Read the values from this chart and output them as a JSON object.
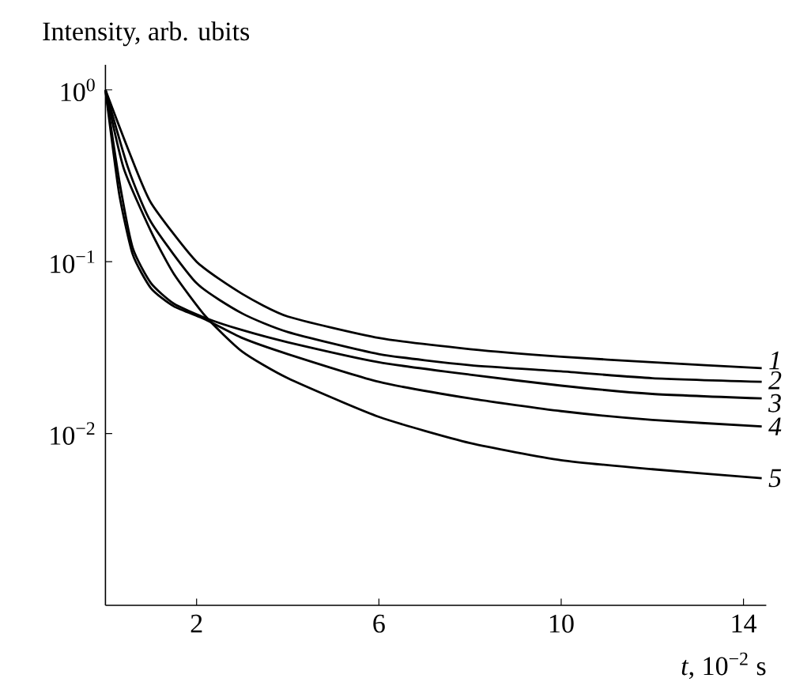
{
  "chart_data": {
    "type": "line",
    "ylabel": "Intensity, arb. ubits",
    "xlabel": "*t*, 10$^{−2}$ s",
    "log": "y",
    "xlim": [
      0,
      14.5
    ],
    "ylim": [
      0.001,
      1.4
    ],
    "xticks": [
      2,
      6,
      10,
      14
    ],
    "yticks": [
      {
        "value": 1,
        "label": "10$^{0}$"
      },
      {
        "value": 0.1,
        "label": "10$^{−1}$"
      },
      {
        "value": 0.01,
        "label": "10$^{−2}$"
      }
    ],
    "grid": false,
    "legend": false,
    "marker": "none",
    "line_style": "solid",
    "series": [
      {
        "name": "1",
        "color": "#000000",
        "x": [
          0,
          0.5,
          1,
          2,
          3,
          4,
          6,
          8,
          10,
          12,
          14.4
        ],
        "values": [
          1,
          0.45,
          0.22,
          0.1,
          0.065,
          0.048,
          0.036,
          0.031,
          0.028,
          0.026,
          0.024
        ]
      },
      {
        "name": "2",
        "color": "#000000",
        "x": [
          0,
          0.5,
          1,
          2,
          3,
          4,
          6,
          8,
          10,
          12,
          14.4
        ],
        "values": [
          1,
          0.35,
          0.17,
          0.075,
          0.05,
          0.039,
          0.029,
          0.025,
          0.023,
          0.021,
          0.02
        ]
      },
      {
        "name": "3",
        "color": "#000000",
        "x": [
          0,
          0.3,
          0.6,
          1,
          1.5,
          2.2,
          3,
          4,
          6,
          8,
          10,
          12,
          14.4
        ],
        "values": [
          1,
          0.3,
          0.12,
          0.075,
          0.057,
          0.047,
          0.04,
          0.034,
          0.026,
          0.022,
          0.019,
          0.017,
          0.016
        ]
      },
      {
        "name": "4",
        "color": "#000000",
        "x": [
          0,
          0.3,
          0.6,
          1,
          1.5,
          2.2,
          3,
          4,
          6,
          8,
          10,
          12,
          14.4
        ],
        "values": [
          1,
          0.25,
          0.11,
          0.07,
          0.055,
          0.046,
          0.036,
          0.029,
          0.02,
          0.016,
          0.0135,
          0.012,
          0.011
        ]
      },
      {
        "name": "5",
        "color": "#000000",
        "x": [
          0,
          0.4,
          1,
          1.5,
          2.2,
          3,
          4,
          6,
          8,
          10,
          12,
          14.4
        ],
        "values": [
          1,
          0.35,
          0.15,
          0.085,
          0.048,
          0.03,
          0.021,
          0.0125,
          0.0088,
          0.007,
          0.0062,
          0.0055
        ]
      }
    ]
  }
}
